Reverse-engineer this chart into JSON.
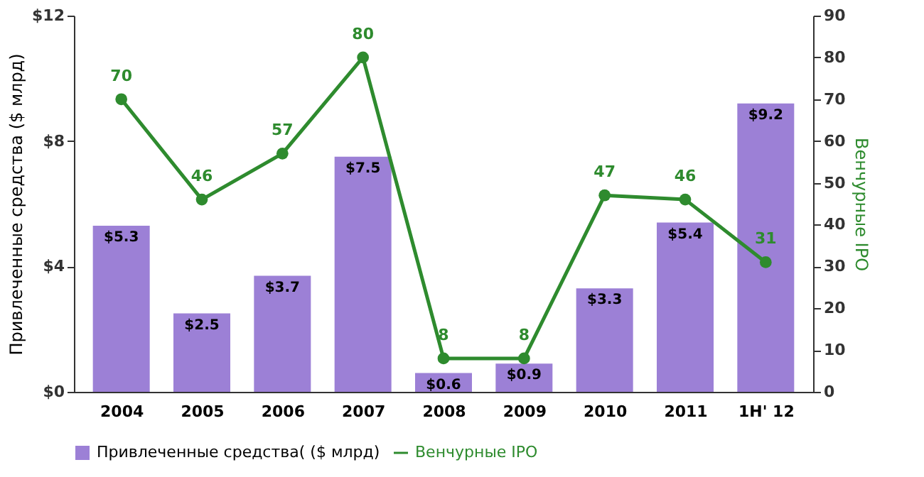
{
  "chart_data": {
    "type": "bar",
    "categories": [
      "2004",
      "2005",
      "2006",
      "2007",
      "2008",
      "2009",
      "2010",
      "2011",
      "1H' 12"
    ],
    "ylabel": "Привлеченные средства ($ млрд)",
    "y2label": "Венчурные IPO",
    "ylim": [
      0,
      12
    ],
    "yticks": [
      {
        "value": 0,
        "label": "$0"
      },
      {
        "value": 4,
        "label": "$4"
      },
      {
        "value": 8,
        "label": "$8"
      },
      {
        "value": 12,
        "label": "$12"
      }
    ],
    "y2lim": [
      0,
      90
    ],
    "y2ticks": [
      0,
      10,
      20,
      30,
      40,
      50,
      60,
      70,
      80,
      90
    ],
    "series": [
      {
        "name": "Привлеченные средства( ($ млрд)",
        "color": "#9c80d6",
        "values": [
          5.3,
          2.5,
          3.7,
          7.5,
          0.6,
          0.9,
          3.3,
          5.4,
          9.2
        ],
        "value_labels": [
          "$5.3",
          "$2.5",
          "$3.7",
          "$7.5",
          "$0.6",
          "$0.9",
          "$3.3",
          "$5.4",
          "$9.2"
        ]
      },
      {
        "name": "Венчурные IPO",
        "type": "line",
        "axis": "y2",
        "color": "#2e8b2e",
        "marker": "circle",
        "values": [
          70,
          46,
          57,
          80,
          8,
          8,
          47,
          46,
          31
        ],
        "value_labels": [
          "70",
          "46",
          "57",
          "80",
          "8",
          "8",
          "47",
          "46",
          "31"
        ]
      }
    ],
    "grid": false,
    "legend": "bottom"
  }
}
